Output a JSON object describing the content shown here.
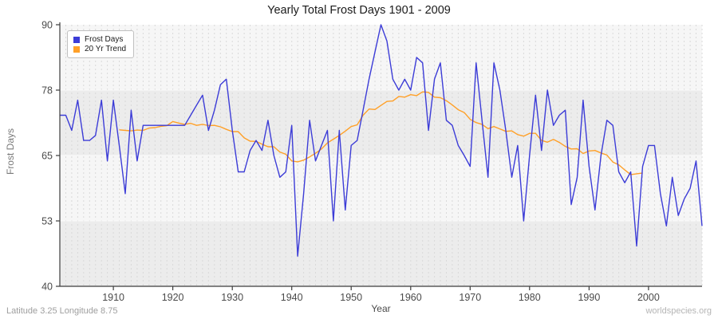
{
  "page": {
    "title": "Yearly Total Frost Days 1901 - 2009"
  },
  "chart_data": {
    "type": "line",
    "title": "Yearly Total Frost Days 1901 - 2009",
    "xlabel": "Year",
    "ylabel": "Frost Days",
    "x_start": 1901,
    "x_end": 2009,
    "xticks": [
      1910,
      1920,
      1930,
      1940,
      1950,
      1960,
      1970,
      1980,
      1990,
      2000
    ],
    "yticks": [
      40,
      53,
      65,
      78,
      90
    ],
    "ylim": [
      40,
      90
    ],
    "grid": "yearly vertical dashed gridlines with alternating horizontal shaded bands",
    "legend_position": "top-left",
    "series": [
      {
        "name": "Frost Days",
        "color": "#3c3cd7",
        "values": [
          73,
          73,
          70,
          76,
          68,
          68,
          69,
          76,
          64,
          76,
          67,
          58,
          74,
          64,
          71,
          71,
          71,
          71,
          71,
          71,
          71,
          71,
          73,
          75,
          77,
          70,
          74,
          79,
          80,
          70,
          62,
          62,
          66,
          68,
          66,
          72,
          65,
          61,
          62,
          71,
          46,
          58,
          72,
          64,
          67,
          70,
          53,
          70,
          55,
          67,
          68,
          74,
          80,
          85,
          90,
          87,
          80,
          78,
          80,
          78,
          84,
          83,
          70,
          80,
          83,
          72,
          71,
          67,
          65,
          63,
          83,
          72,
          61,
          83,
          78,
          70,
          61,
          67,
          53,
          65,
          77,
          66,
          78,
          71,
          73,
          74,
          56,
          61,
          76,
          63,
          55,
          65,
          72,
          71,
          62,
          60,
          62,
          48,
          63,
          67,
          67,
          58,
          52,
          61,
          54,
          57,
          59,
          64,
          52
        ]
      },
      {
        "name": "20 Yr Trend",
        "color": "#ffa028",
        "derived": "centered 20-year moving average of Frost Days",
        "window": 20,
        "center_year_first": 1911,
        "center_year_last": 1999
      }
    ],
    "footer_left": "Latitude 3.25 Longitude 8.75",
    "footer_right": "worldspecies.org",
    "colors": {
      "band_dark": "#ececec",
      "band_light": "#f6f6f6",
      "grid_dash": "#d9d9d9",
      "band_separator": "#fafafa",
      "spine": "#3c3c3c",
      "tick_text": "#4a4a4a"
    }
  }
}
